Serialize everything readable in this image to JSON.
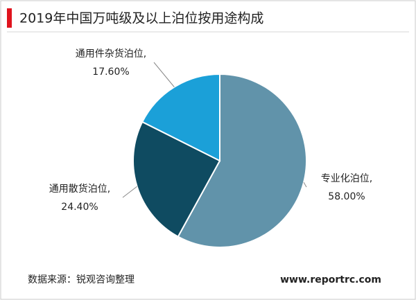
{
  "chart_data": {
    "type": "pie",
    "title": "2019年中国万吨级及以上泊位按用途构成",
    "categories": [
      "专业化泊位,",
      "通用散货泊位,",
      "通用件杂货泊位,"
    ],
    "values": [
      58.0,
      24.4,
      17.6
    ],
    "value_labels": [
      "58.00%",
      "24.40%",
      "17.60%"
    ],
    "colors": [
      "#6193aa",
      "#0f4b61",
      "#1ba0d8"
    ],
    "source": "数据来源：锐观咨询整理",
    "website": "www.reportrc.com"
  }
}
